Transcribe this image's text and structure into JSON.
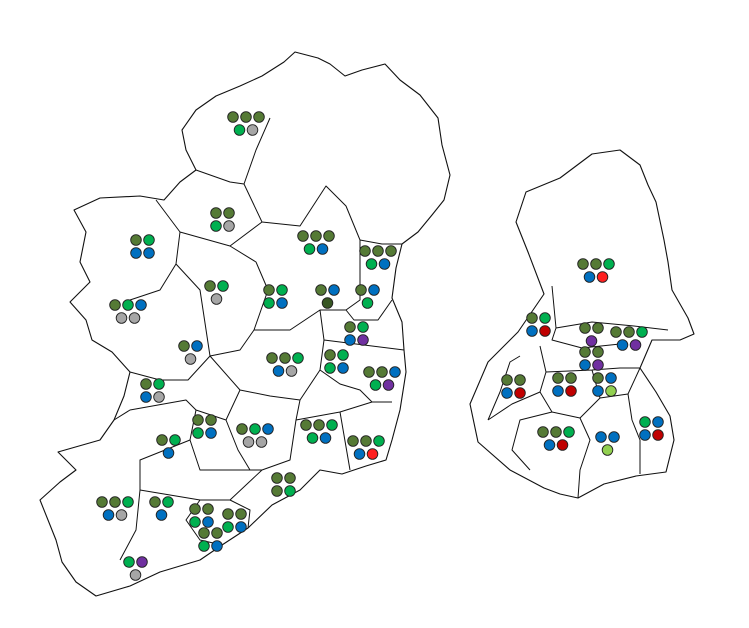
{
  "colors": {
    "O": "#557a35",
    "G": "#00b050",
    "B": "#0070c0",
    "Y": "#a6a6a6",
    "R": "#c00000",
    "r": "#ff2020",
    "P": "#7030a0",
    "L": "#92d050",
    "D": "#375623"
  },
  "ireland_constituencies": [
    {
      "rows": [
        [
          "O",
          "O",
          "O"
        ],
        [
          "G",
          "Y"
        ]
      ]
    },
    {
      "rows": [
        [
          "O",
          "O"
        ],
        [
          "G",
          "Y"
        ]
      ]
    },
    {
      "rows": [
        [
          "O",
          "G"
        ],
        [
          "B",
          "B"
        ]
      ]
    },
    {
      "rows": [
        [
          "O",
          "O",
          "O"
        ],
        [
          "G",
          "B"
        ]
      ]
    },
    {
      "rows": [
        [
          "O",
          "O",
          "O"
        ],
        [
          "G",
          "B"
        ]
      ]
    },
    {
      "rows": [
        [
          "O",
          "G"
        ],
        [
          "Y"
        ]
      ]
    },
    {
      "rows": [
        [
          "O",
          "G"
        ],
        [
          "G",
          "B"
        ]
      ]
    },
    {
      "rows": [
        [
          "O",
          "B"
        ],
        [
          "D"
        ]
      ]
    },
    {
      "rows": [
        [
          "O",
          "B"
        ],
        [
          "G"
        ]
      ]
    },
    {
      "rows": [
        [
          "O",
          "G",
          "B"
        ],
        [
          "Y",
          "Y"
        ]
      ]
    },
    {
      "rows": [
        [
          "O",
          "G"
        ],
        [
          "B",
          "P"
        ]
      ]
    },
    {
      "rows": [
        [
          "O",
          "B"
        ],
        [
          "Y"
        ]
      ]
    },
    {
      "rows": [
        [
          "O",
          "O",
          "G"
        ],
        [
          "B",
          "Y"
        ]
      ]
    },
    {
      "rows": [
        [
          "O",
          "G"
        ],
        [
          "G",
          "B"
        ]
      ]
    },
    {
      "rows": [
        [
          "O",
          "O",
          "B"
        ],
        [
          "G",
          "P"
        ]
      ]
    },
    {
      "rows": [
        [
          "O",
          "G"
        ],
        [
          "B",
          "Y"
        ]
      ]
    },
    {
      "rows": [
        [
          "O",
          "O"
        ],
        [
          "G",
          "B"
        ]
      ]
    },
    {
      "rows": [
        [
          "O",
          "G",
          "B"
        ],
        [
          "Y",
          "Y"
        ]
      ]
    },
    {
      "rows": [
        [
          "O",
          "O",
          "G"
        ],
        [
          "G",
          "B"
        ]
      ]
    },
    {
      "rows": [
        [
          "O",
          "O",
          "G"
        ],
        [
          "B",
          "r"
        ]
      ]
    },
    {
      "rows": [
        [
          "O",
          "G"
        ],
        [
          "B"
        ]
      ]
    },
    {
      "rows": [
        [
          "O",
          "O"
        ],
        [
          "O",
          "G"
        ]
      ]
    },
    {
      "rows": [
        [
          "O",
          "O",
          "G"
        ],
        [
          "B",
          "Y"
        ]
      ]
    },
    {
      "rows": [
        [
          "O",
          "G"
        ],
        [
          "B"
        ]
      ]
    },
    {
      "rows": [
        [
          "O",
          "O"
        ],
        [
          "G",
          "B"
        ]
      ]
    },
    {
      "rows": [
        [
          "O",
          "O"
        ],
        [
          "G",
          "B"
        ]
      ]
    },
    {
      "rows": [
        [
          "O",
          "O"
        ],
        [
          "G",
          "B"
        ]
      ]
    },
    {
      "rows": [
        [
          "G",
          "P"
        ],
        [
          "Y"
        ]
      ]
    }
  ],
  "dublin_constituencies": [
    {
      "rows": [
        [
          "O",
          "O",
          "G"
        ],
        [
          "B",
          "r"
        ]
      ]
    },
    {
      "rows": [
        [
          "O",
          "G"
        ],
        [
          "B",
          "R"
        ]
      ]
    },
    {
      "rows": [
        [
          "O",
          "O"
        ],
        [
          "P"
        ]
      ]
    },
    {
      "rows": [
        [
          "O",
          "O",
          "G"
        ],
        [
          "B",
          "P"
        ]
      ]
    },
    {
      "rows": [
        [
          "O",
          "O"
        ],
        [
          "B",
          "P"
        ]
      ]
    },
    {
      "rows": [
        [
          "O",
          "O"
        ],
        [
          "B",
          "R"
        ]
      ]
    },
    {
      "rows": [
        [
          "O",
          "O"
        ],
        [
          "B",
          "R"
        ]
      ]
    },
    {
      "rows": [
        [
          "O",
          "B"
        ],
        [
          "B",
          "L"
        ]
      ]
    },
    {
      "rows": [
        [
          "G",
          "B"
        ],
        [
          "B",
          "R"
        ]
      ]
    },
    {
      "rows": [
        [
          "O",
          "O",
          "G"
        ],
        [
          "B",
          "R"
        ]
      ]
    },
    {
      "rows": [
        [
          "B",
          "B"
        ],
        [
          "L"
        ]
      ]
    }
  ]
}
